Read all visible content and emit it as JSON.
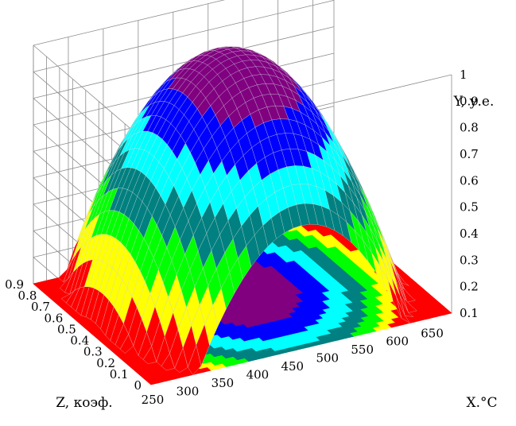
{
  "chart_data": {
    "type": "surface",
    "xlabel": "X.°C",
    "ylabel": "Y, у.е.",
    "zlabel": "Z, коэф.",
    "x_ticks": [
      "250",
      "300",
      "350",
      "400",
      "450",
      "500",
      "550",
      "600",
      "650"
    ],
    "y_ticks": [
      "0.1",
      "0.2",
      "0.3",
      "0.4",
      "0.5",
      "0.6",
      "0.7",
      "0.8",
      "0.9",
      "1"
    ],
    "z_ticks": [
      "0",
      "0.1",
      "0.2",
      "0.3",
      "0.4",
      "0.5",
      "0.6",
      "0.7",
      "0.8",
      "0.9"
    ],
    "xlim": [
      250,
      680
    ],
    "ylim": [
      0.1,
      1
    ],
    "zlim": [
      0,
      0.9
    ],
    "grid": true,
    "surface_peak": {
      "x": 465,
      "z": 0.5,
      "y": 1.0
    },
    "contour_projection": "filled contours on floor",
    "colormap": [
      "#ff0000",
      "#ffff00",
      "#00ff00",
      "#008080",
      "#00ffff",
      "#0000ff",
      "#800080"
    ]
  }
}
